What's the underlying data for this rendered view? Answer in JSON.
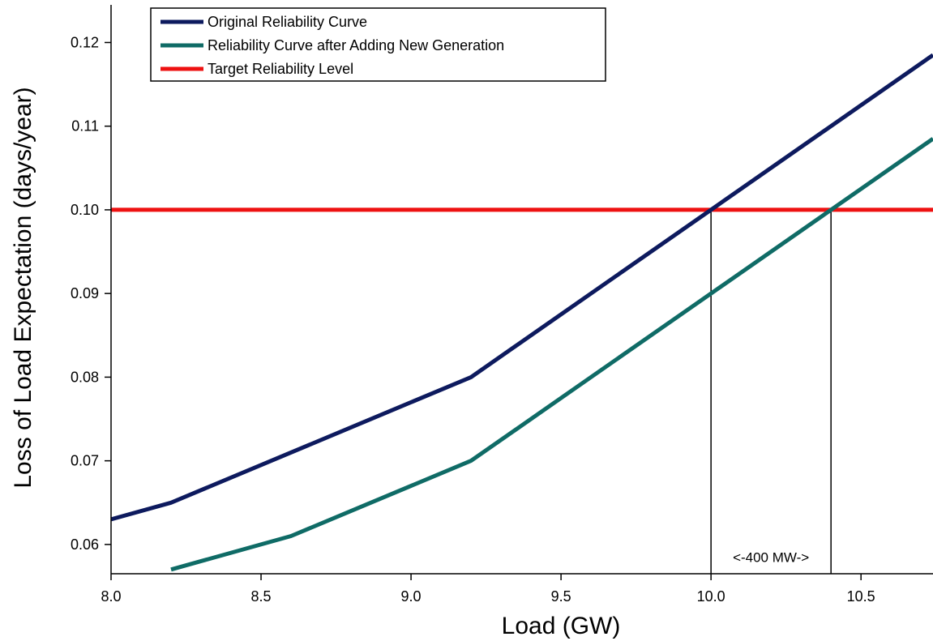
{
  "chart_data": {
    "type": "line",
    "xlabel": "Load (GW)",
    "ylabel": "Loss of Load Expectation (days/year)",
    "xlim": [
      8.0,
      10.74
    ],
    "ylim": [
      0.0565,
      0.1245
    ],
    "x_ticks": [
      8.0,
      8.5,
      9.0,
      9.5,
      10.0,
      10.5
    ],
    "x_tick_labels": [
      "8.0",
      "8.5",
      "9.0",
      "9.5",
      "10.0",
      "10.5"
    ],
    "y_ticks": [
      0.06,
      0.07,
      0.08,
      0.09,
      0.1,
      0.11,
      0.12
    ],
    "y_tick_labels": [
      "0.06",
      "0.07",
      "0.08",
      "0.09",
      "0.10",
      "0.11",
      "0.12"
    ],
    "grid": false,
    "legend_position": "top-left",
    "series": [
      {
        "name": "Original Reliability Curve",
        "color": "#0d1a5e",
        "x": [
          8.0,
          8.2,
          9.2,
          10.0,
          10.74
        ],
        "y": [
          0.063,
          0.065,
          0.08,
          0.1,
          0.1185
        ]
      },
      {
        "name": "Reliability Curve after Adding New Generation",
        "color": "#0f6b66",
        "x": [
          8.2,
          8.6,
          9.2,
          10.0,
          10.74
        ],
        "y": [
          0.057,
          0.061,
          0.07,
          0.09,
          0.1085
        ]
      },
      {
        "name": "Target Reliability Level",
        "color": "#ee1111",
        "x": [
          8.0,
          10.74
        ],
        "y": [
          0.1,
          0.1
        ]
      }
    ],
    "reference_lines": [
      {
        "x": 10.0,
        "y_top": 0.1
      },
      {
        "x": 10.4,
        "y_top": 0.1
      }
    ],
    "annotation": {
      "text": "<-400 MW->",
      "x_from": 10.0,
      "x_to": 10.4,
      "y": 0.0585
    }
  }
}
